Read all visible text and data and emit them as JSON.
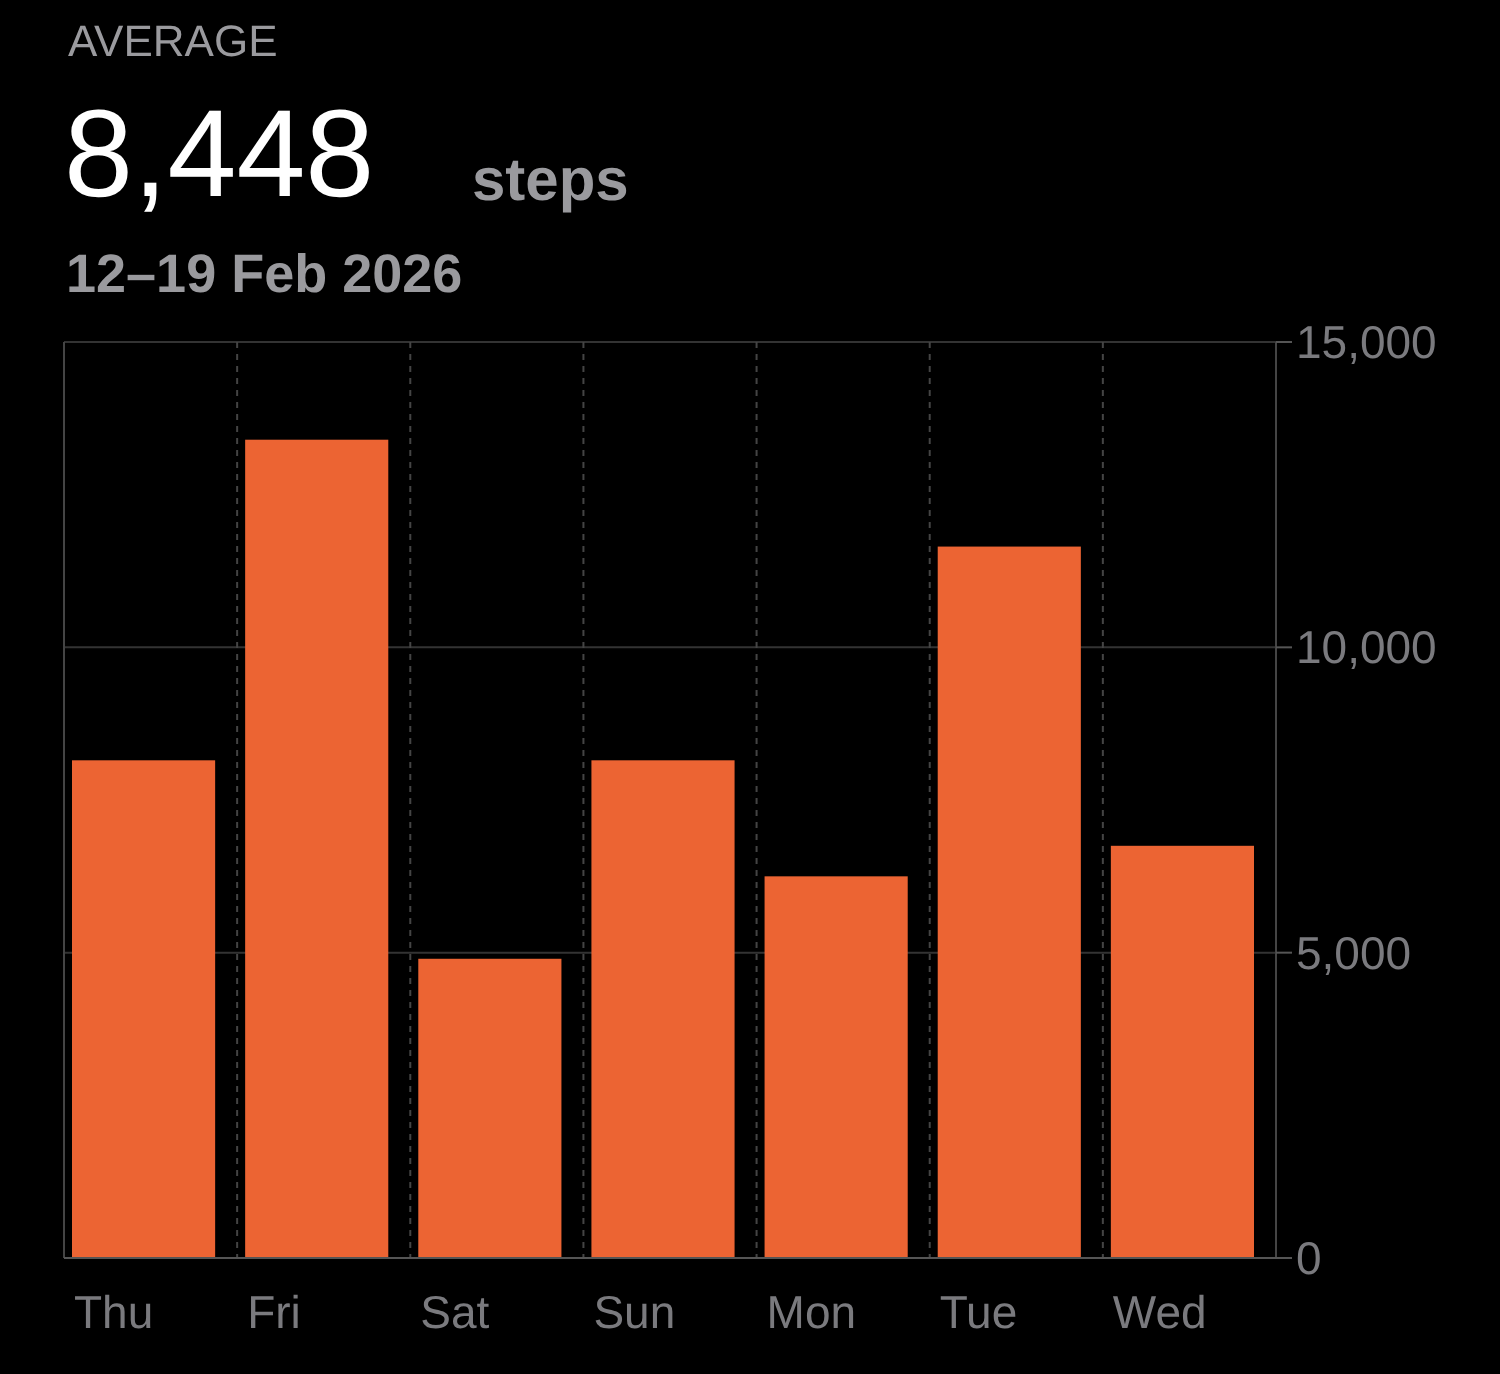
{
  "chart_data": {
    "type": "bar",
    "title": "AVERAGE",
    "subtitle": "12–19 Feb 2026",
    "annotations": [
      "8,448",
      "steps"
    ],
    "categories": [
      "Thu",
      "Fri",
      "Sat",
      "Sun",
      "Mon",
      "Tue",
      "Wed"
    ],
    "values": [
      8150,
      13400,
      4900,
      8150,
      6250,
      11650,
      6750
    ],
    "color": "#ec6433",
    "ylim": [
      0,
      15000
    ],
    "yticks": [
      {
        "value": 0,
        "label": "0"
      },
      {
        "value": 5000,
        "label": "5,000"
      },
      {
        "value": 10000,
        "label": "10,000"
      },
      {
        "value": 15000,
        "label": "15,000"
      }
    ],
    "grid": true
  }
}
